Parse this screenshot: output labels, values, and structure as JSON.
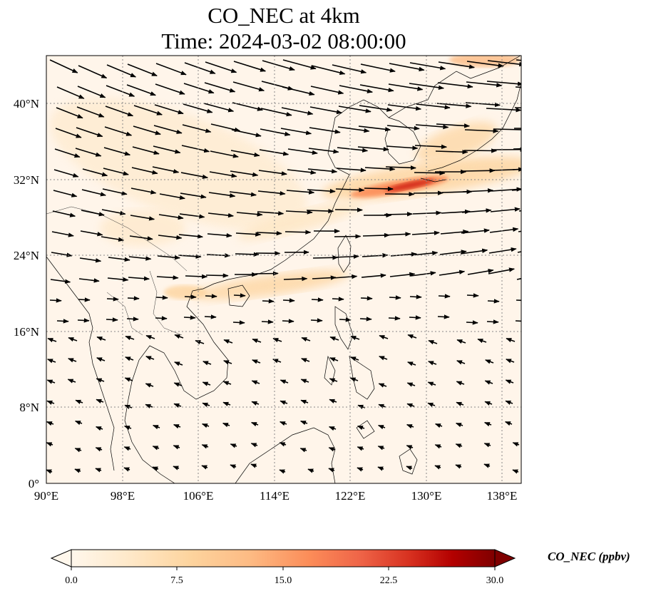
{
  "title": {
    "line1": "CO_NEC at 4km",
    "line2": "Time: 2024-03-02 08:00:00"
  },
  "map": {
    "lon_range": [
      90,
      140
    ],
    "lat_range": [
      0,
      45
    ],
    "lon_ticks": [
      "90°E",
      "98°E",
      "106°E",
      "114°E",
      "122°E",
      "130°E",
      "138°E"
    ],
    "lat_ticks": [
      "0°",
      "8°N",
      "16°N",
      "24°N",
      "32°N",
      "40°N"
    ],
    "gridlines": "dotted",
    "wind_vectors": "westerly north of ~20°N, northeasterly trades south of ~16°N",
    "plume": "high CO band from east China coast through Korea Strait to southern Japan (~30-34°N, 122-140°E)"
  },
  "colorbar": {
    "label": "CO_NEC (ppbv)",
    "ticks": [
      "0.0",
      "7.5",
      "15.0",
      "22.5",
      "30.0"
    ],
    "range": [
      0,
      30
    ],
    "colormap": "OrRd",
    "extend": "both",
    "colors": [
      "#fff7ec",
      "#fee8c8",
      "#fdd49e",
      "#fdbb84",
      "#fc8d59",
      "#ef6548",
      "#d7301f",
      "#b30000",
      "#7f0000"
    ]
  }
}
